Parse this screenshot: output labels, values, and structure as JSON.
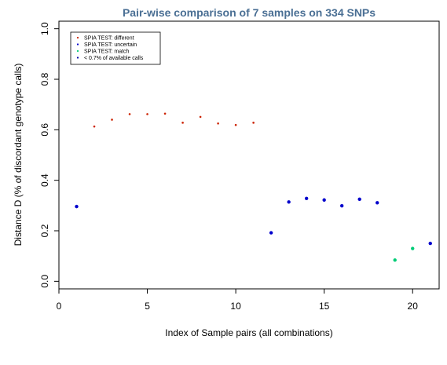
{
  "chart_data": {
    "type": "scatter",
    "title": "Pair-wise comparison of 7 samples on 334 SNPs",
    "xlabel": "Index of Sample pairs (all combinations)",
    "ylabel": "Distance D (% of discordant genotype calls)",
    "xlim": [
      0,
      21.5
    ],
    "ylim": [
      -0.03,
      1.03
    ],
    "xticks": [
      0,
      5,
      10,
      15,
      20
    ],
    "xtick_labels": [
      "0",
      "5",
      "10",
      "15",
      "20"
    ],
    "yticks": [
      0.0,
      0.2,
      0.4,
      0.6,
      0.8,
      1.0
    ],
    "ytick_labels": [
      "0.0",
      "0.2",
      "0.4",
      "0.6",
      "0.8",
      "1.0"
    ],
    "legend_position": "top-left",
    "series": [
      {
        "name": "SPIA TEST: different",
        "color": "#cc2200",
        "marker_size": "small",
        "points": [
          [
            2,
            0.613
          ],
          [
            3,
            0.64
          ],
          [
            4,
            0.662
          ],
          [
            5,
            0.662
          ],
          [
            6,
            0.664
          ],
          [
            7,
            0.628
          ],
          [
            8,
            0.651
          ],
          [
            9,
            0.625
          ],
          [
            10,
            0.619
          ],
          [
            11,
            0.628
          ]
        ]
      },
      {
        "name": "SPIA TEST: uncertain",
        "color": "#0000cc",
        "marker_size": "large",
        "points": [
          [
            1,
            0.296
          ],
          [
            12,
            0.192
          ],
          [
            13,
            0.314
          ],
          [
            14,
            0.328
          ],
          [
            15,
            0.322
          ],
          [
            16,
            0.299
          ],
          [
            17,
            0.325
          ],
          [
            18,
            0.311
          ],
          [
            21,
            0.15
          ]
        ]
      },
      {
        "name": "SPIA TEST: match",
        "color": "#00cc77",
        "marker_size": "large",
        "points": [
          [
            19,
            0.084
          ],
          [
            20,
            0.13
          ]
        ]
      },
      {
        "name": "< 0.7% of available calls",
        "color": "#0000aa",
        "marker_size": "small",
        "points": []
      }
    ],
    "colors": {
      "title": "#4a6f94",
      "axis": "#000000",
      "background": "#ffffff"
    }
  }
}
